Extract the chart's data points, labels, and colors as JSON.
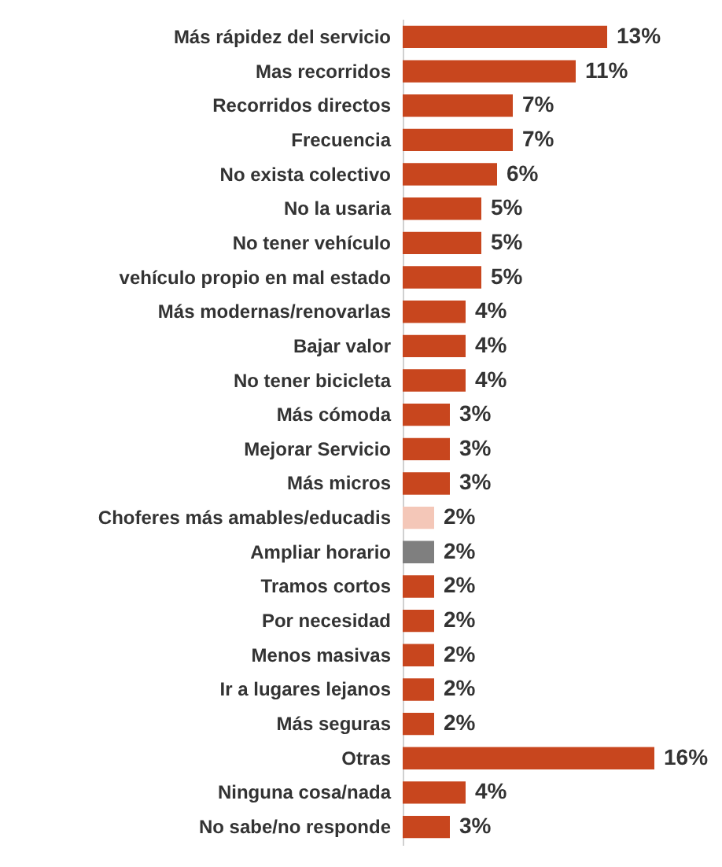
{
  "chart_data": {
    "type": "bar",
    "orientation": "horizontal",
    "categories": [
      "Más rápidez del servicio",
      "Mas recorridos",
      "Recorridos directos",
      "Frecuencia",
      "No exista colectivo",
      "No la usaria",
      "No tener vehículo",
      "vehículo propio en mal estado",
      "Más modernas/renovarlas",
      "Bajar valor",
      "No tener bicicleta",
      "Más cómoda",
      "Mejorar Servicio",
      "Más micros",
      "Choferes más amables/educadis",
      "Ampliar horario",
      "Tramos cortos",
      "Por necesidad",
      "Menos masivas",
      "Ir a lugares lejanos",
      "Más seguras",
      "Otras",
      "Ninguna cosa/nada",
      "No sabe/no responde"
    ],
    "values": [
      13,
      11,
      7,
      7,
      6,
      5,
      5,
      5,
      4,
      4,
      4,
      3,
      3,
      3,
      2,
      2,
      2,
      2,
      2,
      2,
      2,
      16,
      4,
      3
    ],
    "value_labels": [
      "13%",
      "11%",
      "7%",
      "7%",
      "6%",
      "5%",
      "5%",
      "5%",
      "4%",
      "4%",
      "4%",
      "3%",
      "3%",
      "3%",
      "2%",
      "2%",
      "2%",
      "2%",
      "2%",
      "2%",
      "2%",
      "16%",
      "4%",
      "3%"
    ],
    "colors": [
      "#c8461e",
      "#c8461e",
      "#c8461e",
      "#c8461e",
      "#c8461e",
      "#c8461e",
      "#c8461e",
      "#c8461e",
      "#c8461e",
      "#c8461e",
      "#c8461e",
      "#c8461e",
      "#c8461e",
      "#c8461e",
      "#f4c7b8",
      "#7f7f7f",
      "#c8461e",
      "#c8461e",
      "#c8461e",
      "#c8461e",
      "#c8461e",
      "#c8461e",
      "#c8461e",
      "#c8461e"
    ],
    "tick_labels": "y"
  }
}
